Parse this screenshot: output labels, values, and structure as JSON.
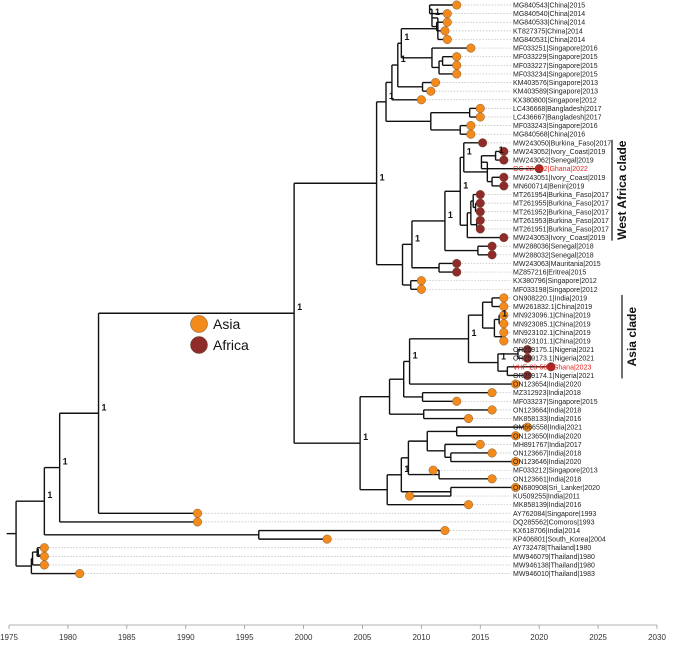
{
  "colors": {
    "asia": "#f28a1c",
    "africa": "#8e2b2b",
    "highlight": "#e8231e"
  },
  "legend": [
    {
      "label": "Asia",
      "region": "asia"
    },
    {
      "label": "Africa",
      "region": "africa"
    }
  ],
  "clades": [
    {
      "label": "West Africa clade",
      "from": "MW243050|Burkina_Faso|2017",
      "to": "MW243053|Ivory_Coast|2019"
    },
    {
      "label": "Asia clade",
      "from": "ON908220.1|India|2019",
      "to": "OR259174.1|Nigeria|2021"
    }
  ],
  "axis": {
    "min": 1975,
    "max": 2030,
    "ticks": [
      1975,
      1980,
      1985,
      1990,
      1995,
      2000,
      2005,
      2010,
      2015,
      2020,
      2025,
      2030
    ]
  },
  "tips": [
    {
      "label": "MG840543|China|2015",
      "year": 2013.0,
      "region": "asia"
    },
    {
      "label": "MG840540|China|2014",
      "year": 2012.2,
      "region": "asia"
    },
    {
      "label": "MG840533|China|2014",
      "year": 2012.2,
      "region": "asia"
    },
    {
      "label": "KT827375|China|2014",
      "year": 2012.0,
      "region": "asia"
    },
    {
      "label": "MG840531|China|2014",
      "year": 2012.2,
      "region": "asia"
    },
    {
      "label": "MF033251|Singapore|2016",
      "year": 2014.2,
      "region": "asia"
    },
    {
      "label": "MF033229|Singapore|2015",
      "year": 2013.0,
      "region": "asia"
    },
    {
      "label": "MF033227|Singapore|2015",
      "year": 2013.0,
      "region": "asia"
    },
    {
      "label": "MF033234|Singapore|2015",
      "year": 2013.0,
      "region": "asia"
    },
    {
      "label": "KM403576|Singapore|2013",
      "year": 2011.2,
      "region": "asia"
    },
    {
      "label": "KM403589|Singapore|2013",
      "year": 2010.8,
      "region": "asia"
    },
    {
      "label": "KX380800|Singapore|2012",
      "year": 2010.0,
      "region": "asia"
    },
    {
      "label": "LC436668|Bangladesh|2017",
      "year": 2015.0,
      "region": "asia"
    },
    {
      "label": "LC436667|Bangladesh|2017",
      "year": 2015.0,
      "region": "asia"
    },
    {
      "label": "MF033243|Singapore|2016",
      "year": 2014.2,
      "region": "asia"
    },
    {
      "label": "MG840568|China|2016",
      "year": 2014.2,
      "region": "asia"
    },
    {
      "label": "MW243050|Burkina_Faso|2017",
      "year": 2015.2,
      "region": "africa"
    },
    {
      "label": "MW243052|Ivory_Coast|2019",
      "year": 2017.0,
      "region": "africa"
    },
    {
      "label": "MW243062|Senegal|2019",
      "year": 2017.0,
      "region": "africa"
    },
    {
      "label": "OC-22-682|Ghana|2022",
      "year": 2020.0,
      "region": "africa",
      "highlight": true
    },
    {
      "label": "MW243051|Ivory_Coast|2019",
      "year": 2017.0,
      "region": "africa"
    },
    {
      "label": "MN600714|Benin|2019",
      "year": 2017.0,
      "region": "africa"
    },
    {
      "label": "MT261954|Burkina_Faso|2017",
      "year": 2015.0,
      "region": "africa"
    },
    {
      "label": "MT261955|Burkina_Faso|2017",
      "year": 2015.0,
      "region": "africa"
    },
    {
      "label": "MT261952|Burkina_Faso|2017",
      "year": 2015.0,
      "region": "africa"
    },
    {
      "label": "MT261953|Burkina_Faso|2017",
      "year": 2015.0,
      "region": "africa"
    },
    {
      "label": "MT261951|Burkina_Faso|2017",
      "year": 2015.0,
      "region": "africa"
    },
    {
      "label": "MW243053|Ivory_Coast|2019",
      "year": 2017.0,
      "region": "africa"
    },
    {
      "label": "MW288036|Senegal|2018",
      "year": 2016.0,
      "region": "africa"
    },
    {
      "label": "MW288032|Senegal|2018",
      "year": 2016.0,
      "region": "africa"
    },
    {
      "label": "MW243063|Mauritania|2015",
      "year": 2013.0,
      "region": "africa"
    },
    {
      "label": "MZ857216|Eritrea|2015",
      "year": 2013.0,
      "region": "africa"
    },
    {
      "label": "KX380796|Singapore|2012",
      "year": 2010.0,
      "region": "asia"
    },
    {
      "label": "MF033198|Singapore|2012",
      "year": 2010.0,
      "region": "asia"
    },
    {
      "label": "ON908220.1|India|2019",
      "year": 2017.0,
      "region": "asia"
    },
    {
      "label": "MW261832.1|China|2019",
      "year": 2017.0,
      "region": "asia"
    },
    {
      "label": "MN923096.1|China|2019",
      "year": 2017.0,
      "region": "asia"
    },
    {
      "label": "MN923085.1|China|2019",
      "year": 2017.0,
      "region": "asia"
    },
    {
      "label": "MN923102.1|China|2019",
      "year": 2017.0,
      "region": "asia"
    },
    {
      "label": "MN923101.1|China|2019",
      "year": 2017.0,
      "region": "asia"
    },
    {
      "label": "OR259175.1|Nigeria|2021",
      "year": 2019.0,
      "region": "africa"
    },
    {
      "label": "OR259173.1|Nigeria|2021",
      "year": 2019.0,
      "region": "africa"
    },
    {
      "label": "VHF-23-580|Ghana|2023",
      "year": 2021.0,
      "region": "africa",
      "highlight": true
    },
    {
      "label": "OR259174.1|Nigeria|2021",
      "year": 2019.0,
      "region": "africa"
    },
    {
      "label": "ON123654|India|2020",
      "year": 2018.0,
      "region": "asia"
    },
    {
      "label": "MZ312923|India|2018",
      "year": 2016.0,
      "region": "asia"
    },
    {
      "label": "MF033237|Singapore|2015",
      "year": 2013.0,
      "region": "asia"
    },
    {
      "label": "ON123664|India|2018",
      "year": 2016.0,
      "region": "asia"
    },
    {
      "label": "MK858133|India|2016",
      "year": 2014.0,
      "region": "asia"
    },
    {
      "label": "OM666558|India|2021",
      "year": 2019.0,
      "region": "asia"
    },
    {
      "label": "ON123650|India|2020",
      "year": 2018.0,
      "region": "asia"
    },
    {
      "label": "MH891767|India|2017",
      "year": 2015.0,
      "region": "asia"
    },
    {
      "label": "ON123667|India|2018",
      "year": 2016.0,
      "region": "asia"
    },
    {
      "label": "ON123646|India|2020",
      "year": 2018.0,
      "region": "asia"
    },
    {
      "label": "MF033212|Singapore|2013",
      "year": 2011.0,
      "region": "asia"
    },
    {
      "label": "ON123661|India|2018",
      "year": 2016.0,
      "region": "asia"
    },
    {
      "label": "ON680908|Sri_Lanker|2020",
      "year": 2018.0,
      "region": "asia"
    },
    {
      "label": "KU509255|India|2011",
      "year": 2009.0,
      "region": "asia"
    },
    {
      "label": "MK858139|India|2016",
      "year": 2014.0,
      "region": "asia"
    },
    {
      "label": "AY762084|Singapore|1993",
      "year": 1991.0,
      "region": "asia"
    },
    {
      "label": "DQ285562|Comoros|1993",
      "year": 1991.0,
      "region": "africa_as_orange"
    },
    {
      "label": "KX618706|India|2014",
      "year": 2012.0,
      "region": "asia"
    },
    {
      "label": "KP406801|South_Korea|2004",
      "year": 2002.0,
      "region": "asia"
    },
    {
      "label": "AY732478|Thailand|1980",
      "year": 1978.0,
      "region": "asia"
    },
    {
      "label": "MW946079|Thailand|1980",
      "year": 1978.0,
      "region": "asia"
    },
    {
      "label": "MW946138|Thailand|1980",
      "year": 1978.0,
      "region": "asia"
    },
    {
      "label": "MW946010|Thailand|1983",
      "year": 1981.0,
      "region": "asia"
    }
  ],
  "nodes": [
    {
      "id": "n1",
      "year": 2010.7,
      "children": [
        "tip0",
        "tip1"
      ],
      "support": ""
    },
    {
      "id": "n2",
      "year": 2011.3,
      "children": [
        "tip2",
        "tip3"
      ],
      "support": ""
    },
    {
      "id": "n3",
      "year": 2010.9,
      "children": [
        "n1",
        "n2"
      ],
      "support": "1"
    },
    {
      "id": "n4",
      "year": 2011.4,
      "children": [
        "tip4",
        "n3"
      ],
      "support": ""
    },
    {
      "id": "n5",
      "year": 2011.8,
      "children": [
        "tip6",
        "tip7"
      ],
      "support": ""
    },
    {
      "id": "n6",
      "year": 2011.5,
      "children": [
        "n5",
        "tip8"
      ],
      "support": ""
    },
    {
      "id": "n7",
      "year": 2010.9,
      "children": [
        "tip5",
        "n6"
      ],
      "support": ""
    },
    {
      "id": "n8",
      "year": 2008.3,
      "children": [
        "n4",
        "n7"
      ],
      "support": "1"
    },
    {
      "id": "n9",
      "year": 2010.1,
      "children": [
        "tip9",
        "tip10"
      ],
      "support": ""
    },
    {
      "id": "n10",
      "year": 2008.0,
      "children": [
        "n8",
        "n9"
      ],
      "support": "1"
    },
    {
      "id": "n11",
      "year": 2007.5,
      "children": [
        "n10",
        "tip11"
      ],
      "support": ""
    },
    {
      "id": "n12",
      "year": 2014.1,
      "children": [
        "tip12",
        "tip13"
      ],
      "support": ""
    },
    {
      "id": "n13",
      "year": 2013.3,
      "children": [
        "tip14",
        "tip15"
      ],
      "support": ""
    },
    {
      "id": "n14",
      "year": 2010.8,
      "children": [
        "n12",
        "n13"
      ],
      "support": ""
    },
    {
      "id": "n15",
      "year": 2007.0,
      "children": [
        "n11",
        "n14"
      ],
      "support": "1"
    },
    {
      "id": "n16",
      "year": 2016.3,
      "children": [
        "tip17",
        "tip18"
      ],
      "support": "1"
    },
    {
      "id": "n17",
      "year": 2016.0,
      "children": [
        "tip20",
        "tip21"
      ],
      "support": ""
    },
    {
      "id": "n18",
      "year": 2015.1,
      "children": [
        "n16",
        "tip19"
      ],
      "support": ""
    },
    {
      "id": "n19",
      "year": 2015.6,
      "children": [
        "n18",
        "n17"
      ],
      "support": ""
    },
    {
      "id": "n20",
      "year": 2013.6,
      "children": [
        "tip16",
        "n19"
      ],
      "support": "1"
    },
    {
      "id": "n21",
      "year": 2014.6,
      "children": [
        "tip23",
        "tip24"
      ],
      "support": ""
    },
    {
      "id": "n22",
      "year": 2014.4,
      "children": [
        "tip22",
        "n21"
      ],
      "support": ""
    },
    {
      "id": "n23",
      "year": 2014.7,
      "children": [
        "tip25",
        "tip26"
      ],
      "support": ""
    },
    {
      "id": "n24",
      "year": 2014.2,
      "children": [
        "n22",
        "n23"
      ],
      "support": ""
    },
    {
      "id": "n25",
      "year": 2013.9,
      "children": [
        "n24",
        "tip27"
      ],
      "support": ""
    },
    {
      "id": "n26",
      "year": 2013.3,
      "children": [
        "n20",
        "n25"
      ],
      "support": "1"
    },
    {
      "id": "n27",
      "year": 2014.8,
      "children": [
        "tip28",
        "tip29"
      ],
      "support": ""
    },
    {
      "id": "n28",
      "year": 2012.0,
      "children": [
        "n26",
        "n27"
      ],
      "support": "1"
    },
    {
      "id": "n29",
      "year": 2011.5,
      "children": [
        "tip30",
        "tip31"
      ],
      "support": ""
    },
    {
      "id": "n30",
      "year": 2009.2,
      "children": [
        "n28",
        "n29"
      ],
      "support": "1"
    },
    {
      "id": "n31",
      "year": 2009.1,
      "children": [
        "tip32",
        "tip33"
      ],
      "support": ""
    },
    {
      "id": "n32",
      "year": 2008.4,
      "children": [
        "n30",
        "n31"
      ],
      "support": ""
    },
    {
      "id": "n33",
      "year": 2006.2,
      "children": [
        "n15",
        "n32"
      ],
      "support": "1"
    },
    {
      "id": "n34",
      "year": 2016.0,
      "children": [
        "tip34",
        "tip35"
      ],
      "support": ""
    },
    {
      "id": "n35",
      "year": 2016.6,
      "children": [
        "tip36",
        "tip37"
      ],
      "support": "1"
    },
    {
      "id": "n36",
      "year": 2016.8,
      "children": [
        "tip38",
        "tip39"
      ],
      "support": ""
    },
    {
      "id": "n37",
      "year": 2016.2,
      "children": [
        "n35",
        "n36"
      ],
      "support": ""
    },
    {
      "id": "n38",
      "year": 2015.2,
      "children": [
        "n34",
        "n37"
      ],
      "support": ""
    },
    {
      "id": "n39",
      "year": 2018.2,
      "children": [
        "tip40",
        "tip41"
      ],
      "support": ""
    },
    {
      "id": "n40",
      "year": 2017.3,
      "children": [
        "tip42",
        "tip43"
      ],
      "support": ""
    },
    {
      "id": "n41",
      "year": 2016.5,
      "children": [
        "n39",
        "n40"
      ],
      "support": "1"
    },
    {
      "id": "n42",
      "year": 2014.0,
      "children": [
        "n38",
        "n41"
      ],
      "support": "1"
    },
    {
      "id": "n43",
      "year": 2009.0,
      "children": [
        "n42",
        "tip44"
      ],
      "support": "1"
    },
    {
      "id": "n44",
      "year": 2010.1,
      "children": [
        "tip45",
        "tip46"
      ],
      "support": ""
    },
    {
      "id": "n45",
      "year": 2008.5,
      "children": [
        "n43",
        "n44"
      ],
      "support": ""
    },
    {
      "id": "n46",
      "year": 2010.2,
      "children": [
        "tip47",
        "tip48"
      ],
      "support": ""
    },
    {
      "id": "n47",
      "year": 2007.3,
      "children": [
        "n45",
        "n46"
      ],
      "support": ""
    },
    {
      "id": "n48",
      "year": 2013.0,
      "children": [
        "tip49",
        "tip50"
      ],
      "support": ""
    },
    {
      "id": "n49",
      "year": 2012.5,
      "children": [
        "tip52",
        "tip53"
      ],
      "support": ""
    },
    {
      "id": "n50",
      "year": 2012.0,
      "children": [
        "tip51",
        "n49"
      ],
      "support": ""
    },
    {
      "id": "n51",
      "year": 2010.5,
      "children": [
        "n48",
        "n50"
      ],
      "support": ""
    },
    {
      "id": "n52",
      "year": 2011.5,
      "children": [
        "tip54",
        "tip55"
      ],
      "support": ""
    },
    {
      "id": "n53",
      "year": 2008.9,
      "children": [
        "n51",
        "n52"
      ],
      "support": ""
    },
    {
      "id": "n54",
      "year": 2012.5,
      "children": [
        "tip56",
        "tip57"
      ],
      "support": ""
    },
    {
      "id": "n55",
      "year": 2008.3,
      "children": [
        "n53",
        "n54"
      ],
      "support": "1"
    },
    {
      "id": "n56",
      "year": 2007.1,
      "children": [
        "n55",
        "tip58"
      ],
      "support": ""
    },
    {
      "id": "n57",
      "year": 2004.8,
      "children": [
        "n47",
        "n56"
      ],
      "support": "1"
    },
    {
      "id": "n58",
      "year": 1999.2,
      "children": [
        "n33",
        "n57"
      ],
      "support": "1"
    },
    {
      "id": "n59",
      "year": 1982.6,
      "children": [
        "n58",
        "tip59"
      ],
      "support": "1"
    },
    {
      "id": "n60",
      "year": 1979.3,
      "children": [
        "n59",
        "tip60"
      ],
      "support": "1"
    },
    {
      "id": "n61",
      "year": 1996.2,
      "children": [
        "tip61",
        "tip62"
      ],
      "support": ""
    },
    {
      "id": "n62",
      "year": 1978.0,
      "children": [
        "n60",
        "n61"
      ],
      "support": "1"
    },
    {
      "id": "n63",
      "year": 1977.4,
      "children": [
        "tip63",
        "tip64"
      ],
      "support": ""
    },
    {
      "id": "n64",
      "year": 1977.0,
      "children": [
        "n63",
        "tip65"
      ],
      "support": "1"
    },
    {
      "id": "n65",
      "year": 1976.9,
      "children": [
        "n64",
        "tip66"
      ],
      "support": ""
    },
    {
      "id": "n66",
      "year": 1975.6,
      "children": [
        "n62",
        "n65"
      ],
      "support": ""
    }
  ],
  "root_year": 1974.8
}
